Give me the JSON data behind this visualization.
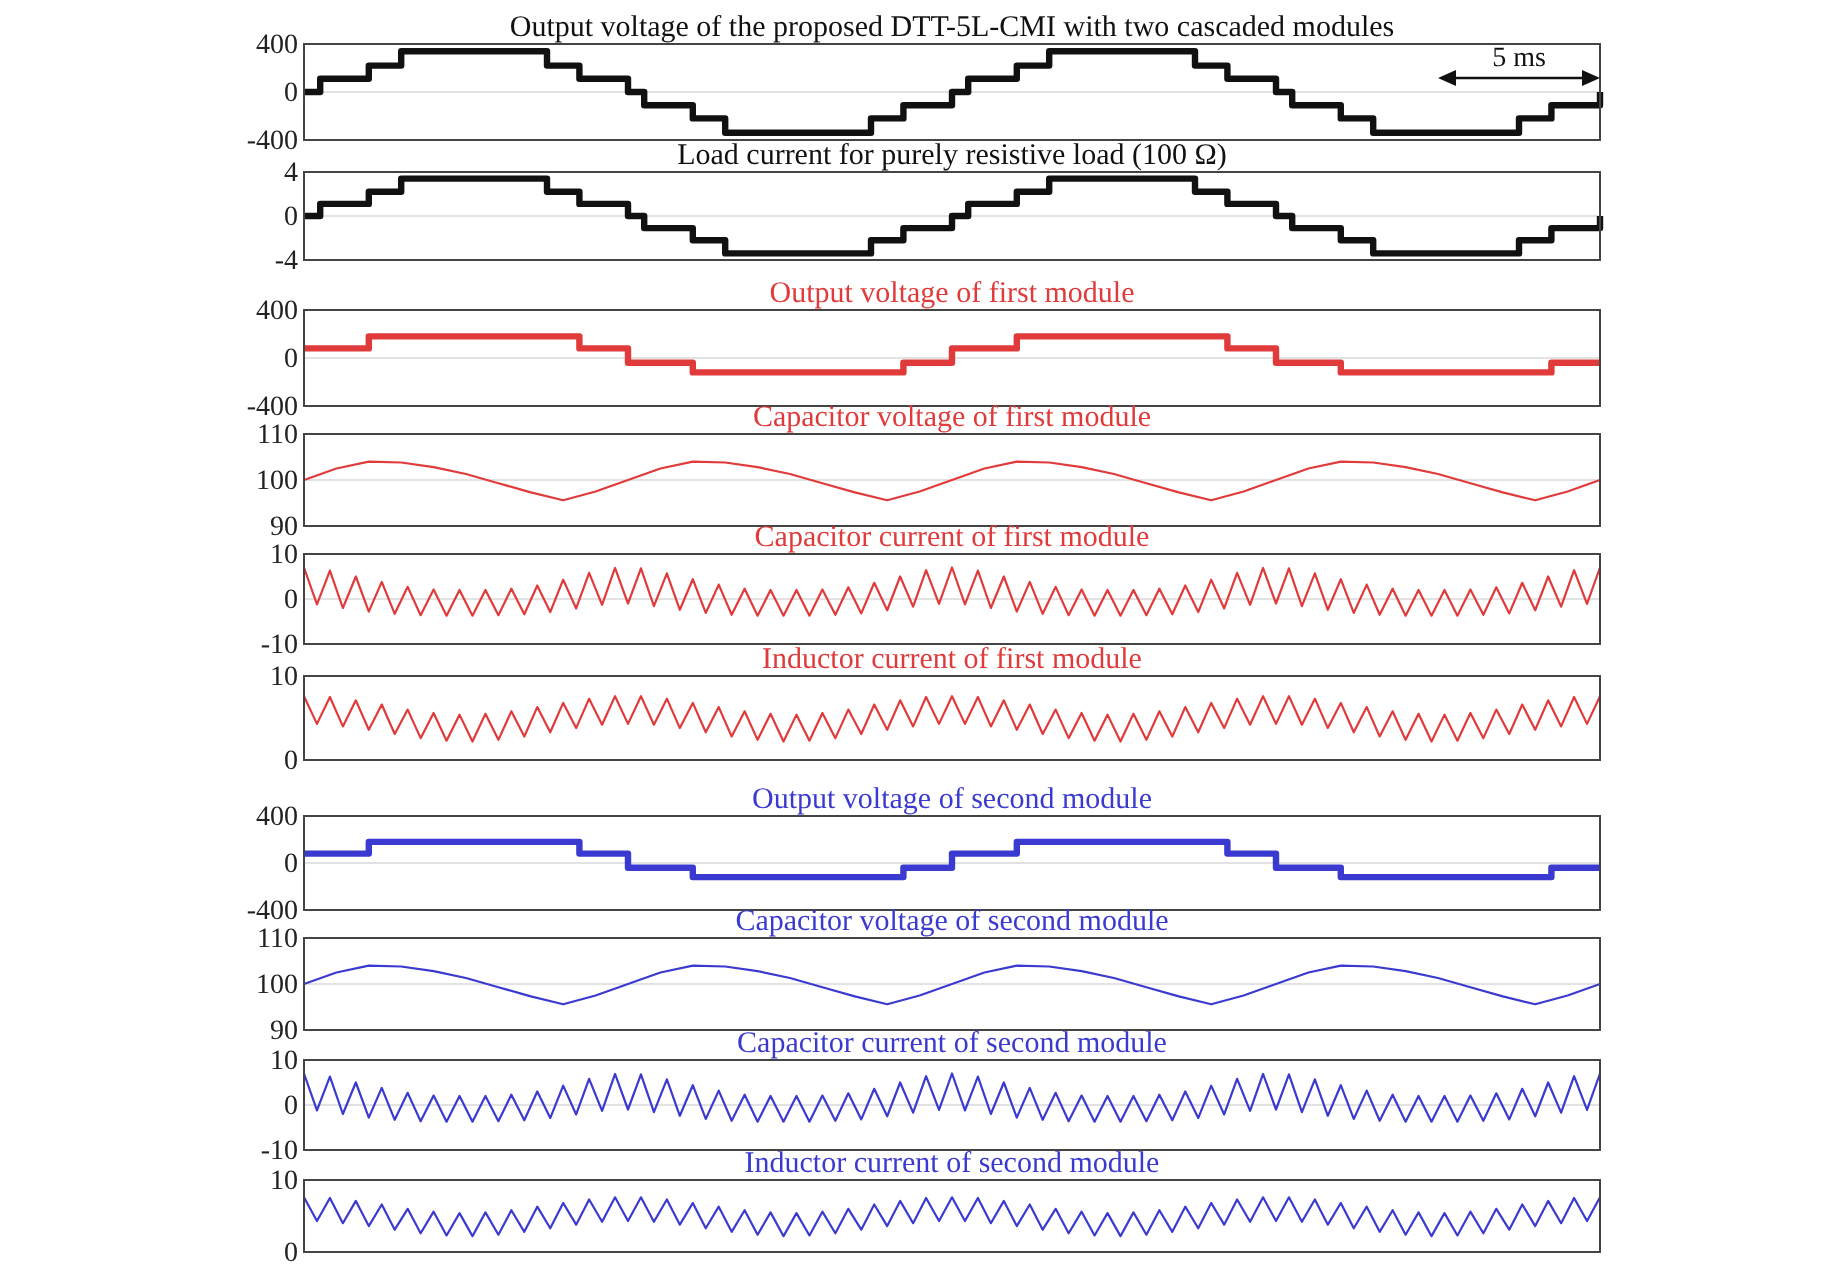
{
  "chart_data": [
    {
      "type": "step",
      "title": "Output voltage of the proposed DTT-5L-CMI with two cascaded modules",
      "ylim": [
        -400,
        400
      ],
      "yticks": [
        -400,
        0,
        400
      ],
      "grid": "y",
      "annotations": [
        "5 ms"
      ],
      "categories": [
        null,
        null,
        null,
        null,
        null,
        null,
        null,
        null,
        null,
        null,
        null,
        null,
        null,
        null,
        null,
        null,
        null,
        null,
        null,
        null,
        null,
        null,
        null,
        null,
        null,
        null,
        null,
        null,
        null,
        null,
        null,
        null,
        null,
        null,
        null,
        null,
        null,
        null,
        null,
        null,
        null,
        null,
        null,
        null,
        null,
        null,
        null,
        null,
        null,
        null,
        null,
        null,
        null,
        null,
        null,
        null,
        null,
        null,
        null,
        null,
        null,
        null,
        null,
        null,
        null,
        null,
        null,
        null,
        null,
        null,
        null,
        null,
        null,
        null,
        null,
        null,
        null,
        null,
        null,
        null,
        null
      ],
      "series": [
        {
          "color": "#111111",
          "values": [
            0,
            110,
            110,
            110,
            220,
            220,
            340,
            340,
            340,
            340,
            340,
            340,
            340,
            340,
            340,
            220,
            220,
            110,
            110,
            110,
            0,
            -110,
            -110,
            -110,
            -220,
            -220,
            -340,
            -340,
            -340,
            -340,
            -340,
            -340,
            -340,
            -340,
            -340,
            -220,
            -220,
            -110,
            -110,
            -110,
            0,
            110,
            110,
            110,
            220,
            220,
            340,
            340,
            340,
            340,
            340,
            340,
            340,
            340,
            340,
            220,
            220,
            110,
            110,
            110,
            0,
            -110,
            -110,
            -110,
            -220,
            -220,
            -340,
            -340,
            -340,
            -340,
            -340,
            -340,
            -340,
            -340,
            -340,
            -220,
            -220,
            -110,
            -110,
            -110,
            0
          ]
        }
      ]
    },
    {
      "type": "step",
      "title": "Load current for purely resistive load (100 Ω)",
      "ylim": [
        -4,
        4
      ],
      "yticks": [
        -4,
        0,
        4
      ],
      "grid": "y",
      "categories": [
        null,
        null,
        null,
        null,
        null,
        null,
        null,
        null,
        null,
        null,
        null,
        null,
        null,
        null,
        null,
        null,
        null,
        null,
        null,
        null,
        null,
        null,
        null,
        null,
        null,
        null,
        null,
        null,
        null,
        null,
        null,
        null,
        null,
        null,
        null,
        null,
        null,
        null,
        null,
        null,
        null,
        null,
        null,
        null,
        null,
        null,
        null,
        null,
        null,
        null,
        null,
        null,
        null,
        null,
        null,
        null,
        null,
        null,
        null,
        null,
        null,
        null,
        null,
        null,
        null,
        null,
        null,
        null,
        null,
        null,
        null,
        null,
        null,
        null,
        null,
        null,
        null,
        null,
        null,
        null,
        null
      ],
      "series": [
        {
          "color": "#111111",
          "values": [
            0,
            1.1,
            1.1,
            1.1,
            2.2,
            2.2,
            3.4,
            3.4,
            3.4,
            3.4,
            3.4,
            3.4,
            3.4,
            3.4,
            3.4,
            2.2,
            2.2,
            1.1,
            1.1,
            1.1,
            0,
            -1.1,
            -1.1,
            -1.1,
            -2.2,
            -2.2,
            -3.4,
            -3.4,
            -3.4,
            -3.4,
            -3.4,
            -3.4,
            -3.4,
            -3.4,
            -3.4,
            -2.2,
            -2.2,
            -1.1,
            -1.1,
            -1.1,
            0,
            1.1,
            1.1,
            1.1,
            2.2,
            2.2,
            3.4,
            3.4,
            3.4,
            3.4,
            3.4,
            3.4,
            3.4,
            3.4,
            3.4,
            2.2,
            2.2,
            1.1,
            1.1,
            1.1,
            0,
            -1.1,
            -1.1,
            -1.1,
            -2.2,
            -2.2,
            -3.4,
            -3.4,
            -3.4,
            -3.4,
            -3.4,
            -3.4,
            -3.4,
            -3.4,
            -3.4,
            -2.2,
            -2.2,
            -1.1,
            -1.1,
            -1.1,
            0
          ]
        }
      ]
    },
    {
      "type": "step",
      "title": "Output voltage of first module",
      "ylim": [
        -400,
        400
      ],
      "yticks": [
        -400,
        0,
        400
      ],
      "grid": "y",
      "categories": [
        null,
        null,
        null,
        null,
        null,
        null,
        null,
        null,
        null,
        null,
        null,
        null,
        null,
        null,
        null,
        null,
        null,
        null,
        null,
        null,
        null,
        null,
        null,
        null,
        null,
        null,
        null,
        null,
        null,
        null,
        null,
        null,
        null,
        null,
        null,
        null,
        null,
        null,
        null,
        null,
        null,
        null,
        null,
        null,
        null,
        null,
        null,
        null,
        null,
        null,
        null,
        null,
        null,
        null,
        null,
        null,
        null,
        null,
        null,
        null,
        null,
        null,
        null,
        null,
        null,
        null,
        null,
        null,
        null,
        null,
        null,
        null,
        null,
        null,
        null,
        null,
        null,
        null,
        null,
        null,
        null
      ],
      "series": [
        {
          "color": "#e03a3a",
          "values": [
            80,
            80,
            80,
            80,
            180,
            180,
            180,
            180,
            180,
            180,
            180,
            180,
            180,
            180,
            180,
            180,
            180,
            80,
            80,
            80,
            -40,
            -40,
            -40,
            -40,
            -120,
            -120,
            -120,
            -120,
            -120,
            -120,
            -120,
            -120,
            -120,
            -120,
            -120,
            -120,
            -120,
            -40,
            -40,
            -40,
            80,
            80,
            80,
            80,
            180,
            180,
            180,
            180,
            180,
            180,
            180,
            180,
            180,
            180,
            180,
            180,
            180,
            80,
            80,
            80,
            -40,
            -40,
            -40,
            -40,
            -120,
            -120,
            -120,
            -120,
            -120,
            -120,
            -120,
            -120,
            -120,
            -120,
            -120,
            -120,
            -120,
            -40,
            -40,
            -40,
            -40
          ]
        }
      ]
    },
    {
      "type": "line",
      "title": "Capacitor voltage of first module",
      "ylim": [
        90,
        110
      ],
      "yticks": [
        90,
        100,
        110
      ],
      "grid": "y",
      "categories": [
        null,
        null,
        null,
        null,
        null,
        null,
        null,
        null,
        null,
        null,
        null,
        null,
        null,
        null,
        null,
        null,
        null,
        null,
        null,
        null,
        null,
        null,
        null,
        null,
        null,
        null,
        null,
        null,
        null,
        null,
        null,
        null,
        null,
        null,
        null,
        null,
        null,
        null,
        null,
        null,
        null
      ],
      "series": [
        {
          "color": "#e03a3a",
          "values": [
            100,
            102.5,
            104,
            103.8,
            102.8,
            101.3,
            99.3,
            97.3,
            95.6,
            97.5,
            100,
            102.5,
            104,
            103.8,
            102.8,
            101.3,
            99.3,
            97.3,
            95.6,
            97.5,
            100,
            102.5,
            104,
            103.8,
            102.8,
            101.3,
            99.3,
            97.3,
            95.6,
            97.5,
            100,
            102.5,
            104,
            103.8,
            102.8,
            101.3,
            99.3,
            97.3,
            95.6,
            97.5,
            100
          ]
        }
      ]
    },
    {
      "type": "line",
      "title": "Capacitor current of first module",
      "ylim": [
        -10,
        10
      ],
      "yticks": [
        -10,
        0,
        10
      ],
      "grid": "y",
      "categories": [
        null,
        null,
        null,
        null,
        null,
        null,
        null,
        null,
        null,
        null,
        null,
        null,
        null,
        null,
        null,
        null,
        null,
        null,
        null,
        null,
        null,
        null,
        null,
        null,
        null,
        null,
        null,
        null,
        null,
        null,
        null,
        null,
        null,
        null,
        null,
        null,
        null,
        null,
        null,
        null,
        null,
        null,
        null,
        null,
        null,
        null,
        null,
        null,
        null,
        null,
        null,
        null,
        null,
        null,
        null,
        null,
        null,
        null,
        null,
        null,
        null,
        null,
        null,
        null,
        null,
        null,
        null,
        null,
        null,
        null,
        null,
        null,
        null,
        null,
        null,
        null,
        null,
        null,
        null,
        null,
        null,
        null,
        null,
        null,
        null,
        null,
        null,
        null,
        null,
        null,
        null,
        null,
        null,
        null,
        null,
        null,
        null,
        null,
        null,
        null,
        null
      ],
      "series": [
        {
          "color": "#e03a3a",
          "values": [
            7,
            -1.2,
            6.3,
            -2,
            5,
            -2.8,
            3.8,
            -3.3,
            2.7,
            -3.6,
            2.1,
            -3.7,
            2,
            -3.7,
            2,
            -3.6,
            2.3,
            -3.4,
            3,
            -2.9,
            4.3,
            -2.1,
            5.8,
            -1.3,
            6.9,
            -1,
            6.8,
            -1.6,
            5.7,
            -2.4,
            4.4,
            -3.1,
            3.2,
            -3.5,
            2.3,
            -3.7,
            2,
            -3.7,
            2,
            -3.7,
            2.1,
            -3.5,
            2.6,
            -3.2,
            3.6,
            -2.5,
            5,
            -1.7,
            6.4,
            -1.1,
            7,
            -1.2,
            6.3,
            -2,
            5,
            -2.8,
            3.8,
            -3.3,
            2.7,
            -3.6,
            2.1,
            -3.7,
            2,
            -3.7,
            2,
            -3.6,
            2.3,
            -3.4,
            3,
            -2.9,
            4.3,
            -2.1,
            5.8,
            -1.3,
            6.9,
            -1,
            6.8,
            -1.6,
            5.7,
            -2.4,
            4.4,
            -3.1,
            3.2,
            -3.5,
            2.3,
            -3.7,
            2,
            -3.7,
            2,
            -3.7,
            2.1,
            -3.5,
            2.6,
            -3.2,
            3.6,
            -2.5,
            5,
            -1.7,
            6.4,
            -1.1,
            7
          ]
        }
      ]
    },
    {
      "type": "line",
      "title": "Inductor current of first module",
      "ylim": [
        0,
        10
      ],
      "yticks": [
        0,
        10
      ],
      "categories": [
        null,
        null,
        null,
        null,
        null,
        null,
        null,
        null,
        null,
        null,
        null,
        null,
        null,
        null,
        null,
        null,
        null,
        null,
        null,
        null,
        null,
        null,
        null,
        null,
        null,
        null,
        null,
        null,
        null,
        null,
        null,
        null,
        null,
        null,
        null,
        null,
        null,
        null,
        null,
        null,
        null,
        null,
        null,
        null,
        null,
        null,
        null,
        null,
        null,
        null,
        null,
        null,
        null,
        null,
        null,
        null,
        null,
        null,
        null,
        null,
        null,
        null,
        null,
        null,
        null,
        null,
        null,
        null,
        null,
        null,
        null,
        null,
        null,
        null,
        null,
        null,
        null,
        null,
        null,
        null,
        null,
        null,
        null,
        null,
        null,
        null,
        null,
        null,
        null,
        null,
        null,
        null,
        null,
        null,
        null,
        null,
        null,
        null,
        null,
        null,
        null
      ],
      "series": [
        {
          "color": "#e03a3a",
          "values": [
            7.6,
            4.3,
            7.5,
            4,
            7.1,
            3.6,
            6.6,
            3.1,
            6,
            2.6,
            5.6,
            2.3,
            5.4,
            2.2,
            5.5,
            2.4,
            5.8,
            2.8,
            6.3,
            3.3,
            6.8,
            3.8,
            7.3,
            4.2,
            7.6,
            4.3,
            7.6,
            4.2,
            7.3,
            3.8,
            6.8,
            3.3,
            6.3,
            2.8,
            5.8,
            2.4,
            5.5,
            2.2,
            5.4,
            2.3,
            5.6,
            2.6,
            6,
            3.1,
            6.6,
            3.6,
            7.1,
            4,
            7.5,
            4.3,
            7.6,
            4.3,
            7.5,
            4,
            7.1,
            3.6,
            6.6,
            3.1,
            6,
            2.6,
            5.6,
            2.3,
            5.4,
            2.2,
            5.5,
            2.4,
            5.8,
            2.8,
            6.3,
            3.3,
            6.8,
            3.8,
            7.3,
            4.2,
            7.6,
            4.3,
            7.6,
            4.2,
            7.3,
            3.8,
            6.8,
            3.3,
            6.3,
            2.8,
            5.8,
            2.4,
            5.5,
            2.2,
            5.4,
            2.3,
            5.6,
            2.6,
            6,
            3.1,
            6.6,
            3.6,
            7.1,
            4,
            7.5,
            4.3,
            7.6
          ]
        }
      ]
    },
    {
      "type": "step",
      "title": "Output voltage of second module",
      "ylim": [
        -400,
        400
      ],
      "yticks": [
        -400,
        0,
        400
      ],
      "grid": "y",
      "categories": [
        null,
        null,
        null,
        null,
        null,
        null,
        null,
        null,
        null,
        null,
        null,
        null,
        null,
        null,
        null,
        null,
        null,
        null,
        null,
        null,
        null,
        null,
        null,
        null,
        null,
        null,
        null,
        null,
        null,
        null,
        null,
        null,
        null,
        null,
        null,
        null,
        null,
        null,
        null,
        null,
        null,
        null,
        null,
        null,
        null,
        null,
        null,
        null,
        null,
        null,
        null,
        null,
        null,
        null,
        null,
        null,
        null,
        null,
        null,
        null,
        null,
        null,
        null,
        null,
        null,
        null,
        null,
        null,
        null,
        null,
        null,
        null,
        null,
        null,
        null,
        null,
        null,
        null,
        null,
        null,
        null
      ],
      "series": [
        {
          "color": "#3a3ad0",
          "values": [
            80,
            80,
            80,
            80,
            180,
            180,
            180,
            180,
            180,
            180,
            180,
            180,
            180,
            180,
            180,
            180,
            180,
            80,
            80,
            80,
            -40,
            -40,
            -40,
            -40,
            -120,
            -120,
            -120,
            -120,
            -120,
            -120,
            -120,
            -120,
            -120,
            -120,
            -120,
            -120,
            -120,
            -40,
            -40,
            -40,
            80,
            80,
            80,
            80,
            180,
            180,
            180,
            180,
            180,
            180,
            180,
            180,
            180,
            180,
            180,
            180,
            180,
            80,
            80,
            80,
            -40,
            -40,
            -40,
            -40,
            -120,
            -120,
            -120,
            -120,
            -120,
            -120,
            -120,
            -120,
            -120,
            -120,
            -120,
            -120,
            -120,
            -40,
            -40,
            -40,
            -40
          ]
        }
      ]
    },
    {
      "type": "line",
      "title": "Capacitor voltage of second module",
      "ylim": [
        90,
        110
      ],
      "yticks": [
        90,
        100,
        110
      ],
      "grid": "y",
      "categories": [
        null,
        null,
        null,
        null,
        null,
        null,
        null,
        null,
        null,
        null,
        null,
        null,
        null,
        null,
        null,
        null,
        null,
        null,
        null,
        null,
        null,
        null,
        null,
        null,
        null,
        null,
        null,
        null,
        null,
        null,
        null,
        null,
        null,
        null,
        null,
        null,
        null,
        null,
        null,
        null,
        null
      ],
      "series": [
        {
          "color": "#3a3ad0",
          "values": [
            100,
            102.5,
            104,
            103.8,
            102.8,
            101.3,
            99.3,
            97.3,
            95.6,
            97.5,
            100,
            102.5,
            104,
            103.8,
            102.8,
            101.3,
            99.3,
            97.3,
            95.6,
            97.5,
            100,
            102.5,
            104,
            103.8,
            102.8,
            101.3,
            99.3,
            97.3,
            95.6,
            97.5,
            100,
            102.5,
            104,
            103.8,
            102.8,
            101.3,
            99.3,
            97.3,
            95.6,
            97.5,
            100
          ]
        }
      ]
    },
    {
      "type": "line",
      "title": "Capacitor current of second module",
      "ylim": [
        -10,
        10
      ],
      "yticks": [
        -10,
        0,
        10
      ],
      "grid": "y",
      "categories": [
        null,
        null,
        null,
        null,
        null,
        null,
        null,
        null,
        null,
        null,
        null,
        null,
        null,
        null,
        null,
        null,
        null,
        null,
        null,
        null,
        null,
        null,
        null,
        null,
        null,
        null,
        null,
        null,
        null,
        null,
        null,
        null,
        null,
        null,
        null,
        null,
        null,
        null,
        null,
        null,
        null,
        null,
        null,
        null,
        null,
        null,
        null,
        null,
        null,
        null,
        null,
        null,
        null,
        null,
        null,
        null,
        null,
        null,
        null,
        null,
        null,
        null,
        null,
        null,
        null,
        null,
        null,
        null,
        null,
        null,
        null,
        null,
        null,
        null,
        null,
        null,
        null,
        null,
        null,
        null,
        null,
        null,
        null,
        null,
        null,
        null,
        null,
        null,
        null,
        null,
        null,
        null,
        null,
        null,
        null,
        null,
        null,
        null,
        null,
        null,
        null
      ],
      "series": [
        {
          "color": "#3a3ad0",
          "values": [
            7,
            -1.2,
            6.3,
            -2,
            5,
            -2.8,
            3.8,
            -3.3,
            2.7,
            -3.6,
            2.1,
            -3.7,
            2,
            -3.7,
            2,
            -3.6,
            2.3,
            -3.4,
            3,
            -2.9,
            4.3,
            -2.1,
            5.8,
            -1.3,
            6.9,
            -1,
            6.8,
            -1.6,
            5.7,
            -2.4,
            4.4,
            -3.1,
            3.2,
            -3.5,
            2.3,
            -3.7,
            2,
            -3.7,
            2,
            -3.7,
            2.1,
            -3.5,
            2.6,
            -3.2,
            3.6,
            -2.5,
            5,
            -1.7,
            6.4,
            -1.1,
            7,
            -1.2,
            6.3,
            -2,
            5,
            -2.8,
            3.8,
            -3.3,
            2.7,
            -3.6,
            2.1,
            -3.7,
            2,
            -3.7,
            2,
            -3.6,
            2.3,
            -3.4,
            3,
            -2.9,
            4.3,
            -2.1,
            5.8,
            -1.3,
            6.9,
            -1,
            6.8,
            -1.6,
            5.7,
            -2.4,
            4.4,
            -3.1,
            3.2,
            -3.5,
            2.3,
            -3.7,
            2,
            -3.7,
            2,
            -3.7,
            2.1,
            -3.5,
            2.6,
            -3.2,
            3.6,
            -2.5,
            5,
            -1.7,
            6.4,
            -1.1,
            7
          ]
        }
      ]
    },
    {
      "type": "line",
      "title": "Inductor current of second module",
      "ylim": [
        0,
        10
      ],
      "yticks": [
        0,
        10
      ],
      "categories": [
        null,
        null,
        null,
        null,
        null,
        null,
        null,
        null,
        null,
        null,
        null,
        null,
        null,
        null,
        null,
        null,
        null,
        null,
        null,
        null,
        null,
        null,
        null,
        null,
        null,
        null,
        null,
        null,
        null,
        null,
        null,
        null,
        null,
        null,
        null,
        null,
        null,
        null,
        null,
        null,
        null,
        null,
        null,
        null,
        null,
        null,
        null,
        null,
        null,
        null,
        null,
        null,
        null,
        null,
        null,
        null,
        null,
        null,
        null,
        null,
        null,
        null,
        null,
        null,
        null,
        null,
        null,
        null,
        null,
        null,
        null,
        null,
        null,
        null,
        null,
        null,
        null,
        null,
        null,
        null,
        null,
        null,
        null,
        null,
        null,
        null,
        null,
        null,
        null,
        null,
        null,
        null,
        null,
        null,
        null,
        null,
        null,
        null,
        null,
        null,
        null
      ],
      "series": [
        {
          "color": "#3a3ad0",
          "values": [
            7.6,
            4.3,
            7.5,
            4,
            7.1,
            3.6,
            6.6,
            3.1,
            6,
            2.6,
            5.6,
            2.3,
            5.4,
            2.2,
            5.5,
            2.4,
            5.8,
            2.8,
            6.3,
            3.3,
            6.8,
            3.8,
            7.3,
            4.2,
            7.6,
            4.3,
            7.6,
            4.2,
            7.3,
            3.8,
            6.8,
            3.3,
            6.3,
            2.8,
            5.8,
            2.4,
            5.5,
            2.2,
            5.4,
            2.3,
            5.6,
            2.6,
            6,
            3.1,
            6.6,
            3.6,
            7.1,
            4,
            7.5,
            4.3,
            7.6,
            4.3,
            7.5,
            4,
            7.1,
            3.6,
            6.6,
            3.1,
            6,
            2.6,
            5.6,
            2.3,
            5.4,
            2.2,
            5.5,
            2.4,
            5.8,
            2.8,
            6.3,
            3.3,
            6.8,
            3.8,
            7.3,
            4.2,
            7.6,
            4.3,
            7.6,
            4.2,
            7.3,
            3.8,
            6.8,
            3.3,
            6.3,
            2.8,
            5.8,
            2.4,
            5.5,
            2.2,
            5.4,
            2.3,
            5.6,
            2.6,
            6,
            3.1,
            6.6,
            3.6,
            7.1,
            4,
            7.5,
            4.3,
            7.6
          ]
        }
      ]
    }
  ]
}
